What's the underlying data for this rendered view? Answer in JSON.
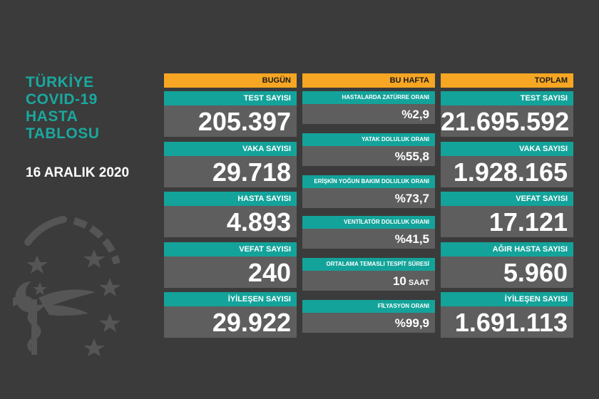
{
  "title": {
    "line1": "TÜRKİYE",
    "line2": "COVID-19",
    "line3": "HASTA",
    "line4": "TABLOSU"
  },
  "date": "16 ARALIK 2020",
  "bugun": {
    "header": "BUGÜN",
    "items": [
      {
        "label": "TEST SAYISI",
        "value": "205.397"
      },
      {
        "label": "VAKA SAYISI",
        "value": "29.718"
      },
      {
        "label": "HASTA SAYISI",
        "value": "4.893"
      },
      {
        "label": "VEFAT SAYISI",
        "value": "240"
      },
      {
        "label": "İYİLEŞEN SAYISI",
        "value": "29.922"
      }
    ]
  },
  "bu_hafta": {
    "header": "BU HAFTA",
    "items": [
      {
        "label": "HASTALARDA ZATÜRRE ORANI",
        "value": "%2,9"
      },
      {
        "label": "YATAK DOLULUK ORANI",
        "value": "%55,8"
      },
      {
        "label": "ERİŞKİN YOĞUN BAKIM DOLULUK ORANI",
        "value": "%73,7"
      },
      {
        "label": "VENTİLATÖR DOLULUK ORANI",
        "value": "%41,5"
      },
      {
        "label": "ORTALAMA TEMASLI TESPİT SÜRESİ",
        "value": "10",
        "unit": "SAAT"
      },
      {
        "label": "FİLYASYON ORANI",
        "value": "%99,9"
      }
    ]
  },
  "toplam": {
    "header": "TOPLAM",
    "items": [
      {
        "label": "TEST SAYISI",
        "value": "21.695.592"
      },
      {
        "label": "VAKA SAYISI",
        "value": "1.928.165"
      },
      {
        "label": "VEFAT SAYISI",
        "value": "17.121"
      },
      {
        "label": "AĞIR HASTA SAYISI",
        "value": "5.960"
      },
      {
        "label": "İYİLEŞEN SAYISI",
        "value": "1.691.113"
      }
    ]
  },
  "colors": {
    "background": "#3b3b3b",
    "header": "#f6a623",
    "label": "#13a39a",
    "value": "#5e5e5e"
  },
  "emblem_icon": "ministry-of-health-emblem-icon"
}
